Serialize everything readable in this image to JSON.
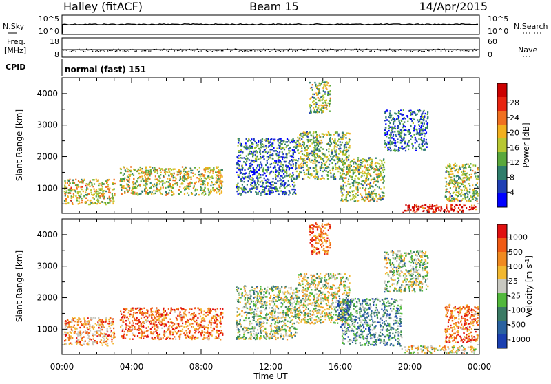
{
  "header": {
    "station": "Halley (fitACF)",
    "beam": "Beam 15",
    "date": "14/Apr/2015"
  },
  "sky_panel": {
    "left_label": "N.Sky",
    "left_ticks": [
      "10^5",
      "10^0"
    ],
    "right_label": "N.Search",
    "right_ticks": [
      "10^5",
      "10^0"
    ]
  },
  "freq_panel": {
    "left_label_line1": "Freq.",
    "left_label_line2": "[MHz]",
    "left_ticks": [
      "18",
      "8"
    ],
    "right_label": "Nave",
    "right_ticks": [
      "60",
      "0"
    ]
  },
  "cpid": {
    "label": "CPID",
    "value": "normal (fast) 151"
  },
  "chart_data": [
    {
      "type": "heatmap",
      "name": "power",
      "ylabel": "Slant Range [km]",
      "xlabel": "Time UT",
      "xlim_hours": [
        0,
        24
      ],
      "x_ticks": [
        "00:00",
        "04:00",
        "08:00",
        "12:00",
        "16:00",
        "20:00",
        "00:00"
      ],
      "ylim": [
        200,
        4500
      ],
      "y_ticks": [
        1000,
        2000,
        3000,
        4000
      ],
      "colorbar": {
        "label": "Power [dB]",
        "ticks": [
          "4",
          "8",
          "12",
          "16",
          "20",
          "24",
          "28"
        ],
        "colors": [
          "#0000ff",
          "#1f3fb4",
          "#2e7d6b",
          "#5aa83c",
          "#b8c832",
          "#f2b01e",
          "#f07020",
          "#e82410",
          "#cc0000"
        ]
      },
      "regions": [
        {
          "t0": 0.1,
          "t1": 3.0,
          "r0": 500,
          "r1": 1300,
          "level": 0.55
        },
        {
          "t0": 3.3,
          "t1": 9.2,
          "r0": 800,
          "r1": 1700,
          "level": 0.5
        },
        {
          "t0": 10.0,
          "t1": 13.5,
          "r0": 800,
          "r1": 2600,
          "level": 0.25
        },
        {
          "t0": 13.5,
          "t1": 16.5,
          "r0": 1300,
          "r1": 2800,
          "level": 0.4
        },
        {
          "t0": 14.2,
          "t1": 15.4,
          "r0": 3400,
          "r1": 4400,
          "level": 0.45
        },
        {
          "t0": 16.0,
          "t1": 18.5,
          "r0": 600,
          "r1": 2000,
          "level": 0.45
        },
        {
          "t0": 18.5,
          "t1": 21.0,
          "r0": 2200,
          "r1": 3500,
          "level": 0.2
        },
        {
          "t0": 19.5,
          "t1": 23.8,
          "r0": 250,
          "r1": 500,
          "level": 0.9
        },
        {
          "t0": 22.0,
          "t1": 23.9,
          "r0": 600,
          "r1": 1800,
          "level": 0.45
        }
      ]
    },
    {
      "type": "heatmap",
      "name": "velocity",
      "ylabel": "Slant Range [km]",
      "xlabel": "Time UT",
      "xlim_hours": [
        0,
        24
      ],
      "x_ticks": [
        "00:00",
        "04:00",
        "08:00",
        "12:00",
        "16:00",
        "20:00",
        "00:00"
      ],
      "ylim": [
        200,
        4500
      ],
      "y_ticks": [
        1000,
        2000,
        3000,
        4000
      ],
      "colorbar": {
        "label": "Velocity [m s-1]",
        "ticks": [
          "1000",
          "500",
          "100",
          "25",
          "-25",
          "-100",
          "-500",
          "-1000"
        ],
        "colors": [
          "#1a3fb0",
          "#2a62a0",
          "#3a7a64",
          "#52b83c",
          "#c8c8c0",
          "#f2b830",
          "#f08a20",
          "#f05a14",
          "#e01010"
        ]
      },
      "regions": [
        {
          "t0": 0.1,
          "t1": 3.0,
          "r0": 500,
          "r1": 1400,
          "level": 0.7
        },
        {
          "t0": 3.3,
          "t1": 9.2,
          "r0": 700,
          "r1": 1700,
          "level": 0.78
        },
        {
          "t0": 10.0,
          "t1": 13.5,
          "r0": 700,
          "r1": 2400,
          "level": 0.45
        },
        {
          "t0": 13.5,
          "t1": 16.5,
          "r0": 1200,
          "r1": 2800,
          "level": 0.5
        },
        {
          "t0": 14.2,
          "t1": 15.4,
          "r0": 3400,
          "r1": 4400,
          "level": 0.8
        },
        {
          "t0": 15.8,
          "t1": 16.6,
          "r0": 1300,
          "r1": 2000,
          "level": 0.1
        },
        {
          "t0": 16.0,
          "t1": 19.5,
          "r0": 500,
          "r1": 2000,
          "level": 0.3
        },
        {
          "t0": 18.5,
          "t1": 21.0,
          "r0": 2200,
          "r1": 3500,
          "level": 0.45
        },
        {
          "t0": 19.5,
          "t1": 23.8,
          "r0": 250,
          "r1": 500,
          "level": 0.55
        },
        {
          "t0": 22.0,
          "t1": 23.9,
          "r0": 600,
          "r1": 1800,
          "level": 0.8
        }
      ]
    }
  ]
}
